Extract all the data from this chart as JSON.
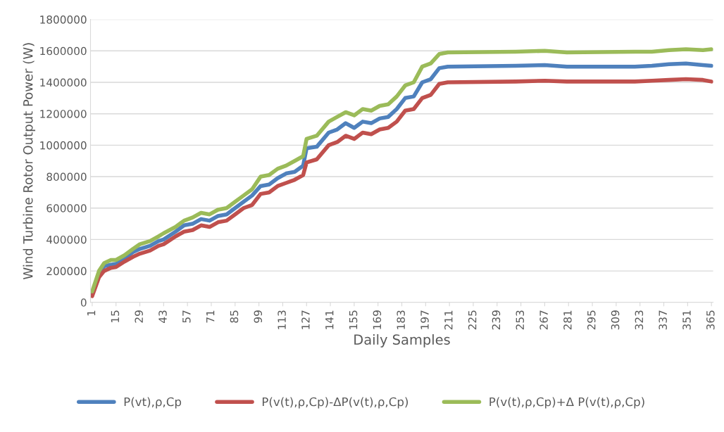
{
  "chart_data": {
    "type": "line",
    "xlabel": "Daily Samples",
    "ylabel": "Wind Turbine Rotor Output Power (W)",
    "x": [
      1,
      5,
      8,
      12,
      15,
      20,
      25,
      29,
      35,
      40,
      43,
      50,
      55,
      60,
      65,
      70,
      75,
      80,
      85,
      90,
      95,
      100,
      105,
      110,
      115,
      120,
      125,
      127,
      133,
      140,
      145,
      150,
      155,
      160,
      165,
      170,
      175,
      180,
      185,
      190,
      195,
      200,
      205,
      210,
      250,
      267,
      280,
      320,
      330,
      340,
      350,
      360,
      365
    ],
    "series": [
      {
        "name": "P(vt),ρ,Cp",
        "color": "#4f81bd",
        "values": [
          60000,
          180000,
          230000,
          240000,
          245000,
          280000,
          320000,
          340000,
          360000,
          390000,
          400000,
          450000,
          490000,
          500000,
          530000,
          520000,
          550000,
          560000,
          600000,
          640000,
          680000,
          740000,
          750000,
          790000,
          820000,
          830000,
          870000,
          980000,
          990000,
          1080000,
          1100000,
          1140000,
          1110000,
          1150000,
          1140000,
          1170000,
          1180000,
          1230000,
          1300000,
          1310000,
          1400000,
          1420000,
          1490000,
          1500000,
          1505000,
          1510000,
          1500000,
          1500000,
          1505000,
          1515000,
          1520000,
          1510000,
          1505000
        ]
      },
      {
        "name": "P(v(t),ρ,Cp)-ΔP(v(t),ρ,Cp)",
        "color": "#c0504d",
        "values": [
          40000,
          160000,
          200000,
          220000,
          225000,
          260000,
          290000,
          310000,
          330000,
          360000,
          370000,
          420000,
          450000,
          460000,
          490000,
          480000,
          510000,
          520000,
          560000,
          600000,
          620000,
          690000,
          700000,
          740000,
          760000,
          780000,
          810000,
          890000,
          910000,
          1000000,
          1020000,
          1060000,
          1040000,
          1080000,
          1070000,
          1100000,
          1110000,
          1150000,
          1220000,
          1230000,
          1300000,
          1320000,
          1390000,
          1400000,
          1405000,
          1410000,
          1405000,
          1405000,
          1410000,
          1415000,
          1420000,
          1415000,
          1405000
        ]
      },
      {
        "name": "P(v(t),ρ,Cp)+Δ P(v(t),ρ,Cp)",
        "color": "#9bbb59",
        "values": [
          70000,
          200000,
          250000,
          270000,
          270000,
          300000,
          340000,
          370000,
          390000,
          420000,
          440000,
          480000,
          520000,
          540000,
          570000,
          560000,
          590000,
          600000,
          640000,
          680000,
          720000,
          800000,
          810000,
          850000,
          870000,
          900000,
          930000,
          1040000,
          1060000,
          1150000,
          1180000,
          1210000,
          1190000,
          1230000,
          1220000,
          1250000,
          1260000,
          1310000,
          1380000,
          1400000,
          1500000,
          1520000,
          1580000,
          1590000,
          1595000,
          1600000,
          1590000,
          1595000,
          1595000,
          1605000,
          1610000,
          1605000,
          1610000
        ]
      }
    ],
    "xlim": [
      0,
      366
    ],
    "xticks": [
      1,
      15,
      29,
      43,
      57,
      71,
      85,
      99,
      113,
      127,
      141,
      155,
      169,
      183,
      197,
      211,
      225,
      239,
      253,
      267,
      281,
      295,
      309,
      323,
      337,
      351,
      365
    ],
    "ylim": [
      0,
      1800000
    ],
    "yticks": [
      0,
      200000,
      400000,
      600000,
      800000,
      1000000,
      1200000,
      1400000,
      1600000,
      1800000
    ],
    "grid": "y",
    "legend": "bottom",
    "marker": "none",
    "line_style": "solid"
  }
}
